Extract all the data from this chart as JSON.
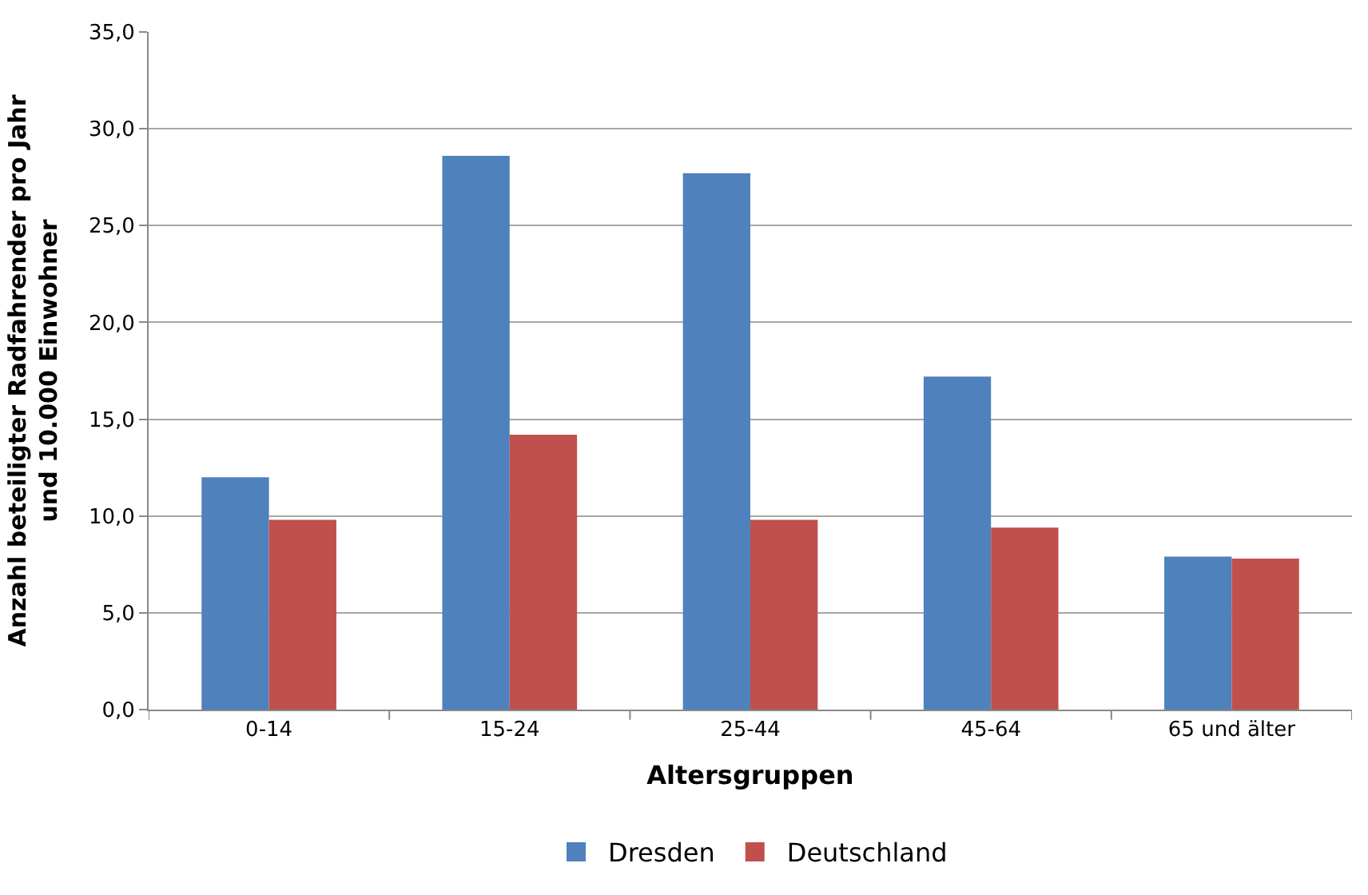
{
  "chart_data": {
    "type": "bar",
    "xlabel": "Altersgruppen",
    "ylabel": "Anzahl beteiligter Radfahrender pro Jahr und 10.000 Einwohner",
    "categories": [
      "0-14",
      "15-24",
      "25-44",
      "45-64",
      "65 und älter"
    ],
    "series": [
      {
        "name": "Dresden",
        "color": "#4f81bd",
        "values": [
          12.0,
          28.6,
          27.7,
          17.2,
          7.9
        ]
      },
      {
        "name": "Deutschland",
        "color": "#c0504d",
        "values": [
          9.8,
          14.2,
          9.8,
          9.4,
          7.8
        ]
      }
    ],
    "ylim": [
      0,
      35
    ],
    "yticks": [
      {
        "value": 0,
        "label": "0,0"
      },
      {
        "value": 5,
        "label": "5,0"
      },
      {
        "value": 10,
        "label": "10,0"
      },
      {
        "value": 15,
        "label": "15,0"
      },
      {
        "value": 20,
        "label": "20,0"
      },
      {
        "value": 25,
        "label": "25,0"
      },
      {
        "value": 30,
        "label": "30,0"
      },
      {
        "value": 35,
        "label": "35,0"
      }
    ],
    "grid": "y",
    "legend": "bottom"
  }
}
